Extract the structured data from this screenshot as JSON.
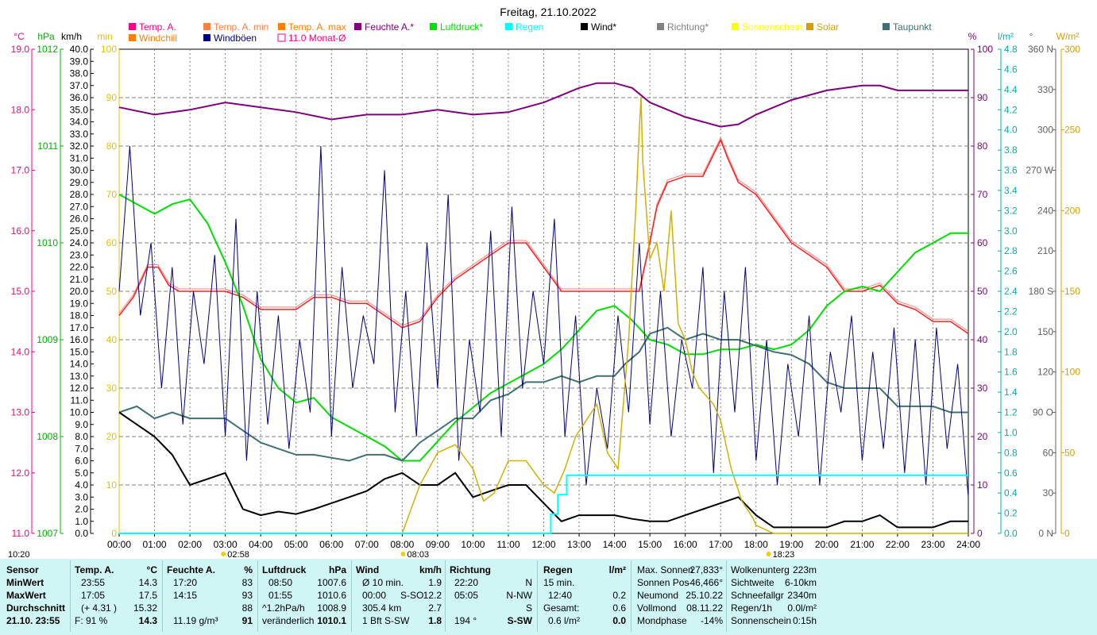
{
  "title": "Freitag, 21.10.2022",
  "colors": {
    "temp": "#ff2020",
    "temp_min": "#ff6666",
    "temp_max": "#ff8080",
    "humidity": "#800080",
    "pressure": "#00e000",
    "rain": "#00ffff",
    "wind": "#000000",
    "gusts": "#000080",
    "direction": "#808080",
    "solar": "#d4b000",
    "dewpoint": "#407070",
    "grid": "#808080",
    "footer_bg": "#cff5f5"
  },
  "legend": [
    {
      "label": "Temp. A.",
      "color": "#ff0080",
      "kind": "box"
    },
    {
      "label": "Temp. A. min",
      "color": "#ff8040",
      "kind": "box"
    },
    {
      "label": "Temp. A. max",
      "color": "#ff8000",
      "kind": "box"
    },
    {
      "label": "Feuchte A.*",
      "color": "#800080",
      "kind": "box"
    },
    {
      "label": "Luftdruck*",
      "color": "#00e000",
      "kind": "box"
    },
    {
      "label": "Regen",
      "color": "#00ffff",
      "kind": "box"
    },
    {
      "label": "Wind*",
      "color": "#000000",
      "kind": "box"
    },
    {
      "label": "Richtung*",
      "color": "#808080",
      "kind": "box"
    },
    {
      "label": "Sonnenschein",
      "color": "#ffff00",
      "kind": "box"
    },
    {
      "label": "Solar",
      "color": "#d4a000",
      "kind": "box"
    },
    {
      "label": "Taupunkt",
      "color": "#407070",
      "kind": "box"
    },
    {
      "label": "Windchill",
      "color": "#ff8000",
      "kind": "box"
    },
    {
      "label": "Windböen",
      "color": "#000080",
      "kind": "box"
    },
    {
      "label": "11.0 Monat-Ø",
      "color": "#ff0080",
      "kind": "hollow"
    }
  ],
  "axes": {
    "unit_labels": {
      "temp": "°C",
      "pressure": "hPa",
      "wind": "km/h",
      "min": "min",
      "humidity": "%",
      "rain": "l/m²",
      "direction": "°",
      "solar": "W/m²"
    },
    "temp_ticks": [
      "19.0",
      "18.0",
      "17.0",
      "16.0",
      "15.0",
      "14.0",
      "13.0",
      "12.0",
      "11.0"
    ],
    "pressure_ticks": [
      "1012",
      "1011",
      "1010",
      "1009",
      "1008",
      "1007"
    ],
    "wind_ticks": [
      "40.0",
      "39.0",
      "38.0",
      "37.0",
      "36.0",
      "35.0",
      "34.0",
      "33.0",
      "32.0",
      "31.0",
      "30.0",
      "29.0",
      "28.0",
      "27.0",
      "26.0",
      "25.0",
      "24.0",
      "23.0",
      "22.0",
      "21.0",
      "20.0",
      "19.0",
      "18.0",
      "17.0",
      "16.0",
      "15.0",
      "14.0",
      "13.0",
      "12.0",
      "11.0",
      "10.0",
      "9.0",
      "8.0",
      "7.0",
      "6.0",
      "5.0",
      "4.0",
      "3.0",
      "2.0",
      "1.0",
      "0.0"
    ],
    "min_ticks": [
      "100",
      "90",
      "80",
      "70",
      "60",
      "50",
      "40",
      "30",
      "20",
      "10",
      "0"
    ],
    "humidity_ticks": [
      "100",
      "90",
      "80",
      "70",
      "60",
      "50",
      "40",
      "30",
      "20",
      "10",
      "0"
    ],
    "rain_ticks": [
      "4.8",
      "4.6",
      "4.4",
      "4.2",
      "4.0",
      "3.8",
      "3.6",
      "3.4",
      "3.2",
      "3.0",
      "2.8",
      "2.6",
      "2.4",
      "2.2",
      "2.0",
      "1.8",
      "1.6",
      "1.4",
      "1.2",
      "1.0",
      "0.8",
      "0.6",
      "0.4",
      "0.2",
      "0.0"
    ],
    "direction_ticks": [
      "360 N",
      "330",
      "300",
      "270 W",
      "240",
      "210",
      "180 S",
      "150",
      "120",
      "90 O",
      "60",
      "30",
      "0 N"
    ],
    "solar_ticks": [
      "300",
      "250",
      "200",
      "150",
      "100",
      "50",
      "0"
    ],
    "x_ticks": [
      "00:00",
      "01:00",
      "02:00",
      "03:00",
      "04:00",
      "05:00",
      "06:00",
      "07:00",
      "08:00",
      "09:00",
      "10:00",
      "11:00",
      "12:00",
      "13:00",
      "14:00",
      "15:00",
      "16:00",
      "17:00",
      "18:00",
      "19:00",
      "20:00",
      "21:00",
      "22:00",
      "23:00",
      "24:00"
    ],
    "markers": [
      "10:20",
      "02:58",
      "08:03",
      "18:23"
    ]
  },
  "chart_data": {
    "type": "line",
    "title": "Freitag, 21.10.2022",
    "x_unit": "hours",
    "series": [
      {
        "name": "Temp. A.",
        "axis": "temp",
        "ylim": [
          11,
          19
        ],
        "x": [
          0,
          0.4,
          0.8,
          1.1,
          1.4,
          1.7,
          2,
          2.5,
          3,
          3.5,
          4,
          4.5,
          5,
          5.5,
          6,
          6.5,
          7,
          7.5,
          8,
          8.5,
          9,
          9.5,
          10,
          10.5,
          11,
          11.5,
          12,
          12.5,
          13,
          13.5,
          14,
          14.3,
          14.7,
          15,
          15.2,
          15.5,
          16,
          16.5,
          17,
          17.2,
          17.5,
          18,
          18.5,
          19,
          19.5,
          20,
          20.5,
          21,
          21.5,
          22,
          22.5,
          23,
          23.5,
          24
        ],
        "y": [
          14.6,
          14.9,
          15.4,
          15.4,
          15.1,
          15,
          15,
          15,
          15,
          14.9,
          14.7,
          14.7,
          14.7,
          14.9,
          14.9,
          14.8,
          14.8,
          14.6,
          14.4,
          14.5,
          14.9,
          15.2,
          15.4,
          15.6,
          15.8,
          15.8,
          15.4,
          15,
          15,
          15,
          15,
          15,
          15,
          15.8,
          16.4,
          16.8,
          16.9,
          16.9,
          17.5,
          17.2,
          16.8,
          16.6,
          16.2,
          15.8,
          15.6,
          15.4,
          15,
          15,
          15.1,
          14.8,
          14.7,
          14.5,
          14.5,
          14.3
        ]
      },
      {
        "name": "Feuchte A.",
        "axis": "humidity",
        "ylim": [
          0,
          100
        ],
        "x": [
          0,
          1,
          2,
          3,
          4,
          5,
          6,
          7,
          8,
          9,
          10,
          11,
          12,
          13,
          13.5,
          14,
          14.5,
          15,
          15.5,
          16,
          16.5,
          17,
          17.5,
          18,
          18.5,
          19,
          19.5,
          20,
          21,
          21.5,
          22,
          23,
          24
        ],
        "y": [
          88,
          86.5,
          87.5,
          89,
          88,
          87,
          85.5,
          86.5,
          86.5,
          87.5,
          86.5,
          87,
          89,
          92,
          93,
          93,
          92,
          89,
          87.5,
          86,
          85,
          84,
          84.5,
          86.5,
          88,
          89.5,
          90.5,
          91.5,
          92.5,
          92.5,
          91.5,
          91.5,
          91.5
        ]
      },
      {
        "name": "Luftdruck",
        "axis": "pressure",
        "ylim": [
          1007,
          1012
        ],
        "x": [
          0,
          0.5,
          1,
          1.5,
          2,
          2.5,
          3,
          3.5,
          4,
          4.5,
          5,
          5.5,
          6,
          6.5,
          7,
          7.5,
          8,
          8.5,
          9,
          9.5,
          10,
          10.5,
          11,
          11.5,
          12,
          12.5,
          13,
          13.5,
          14,
          14.5,
          15,
          15.5,
          16,
          16.5,
          17,
          17.5,
          18,
          18.5,
          19,
          19.5,
          20,
          20.5,
          21,
          21.5,
          22,
          22.5,
          23,
          23.5,
          24
        ],
        "y": [
          1010.5,
          1010.4,
          1010.3,
          1010.4,
          1010.45,
          1010.2,
          1009.8,
          1009.35,
          1008.8,
          1008.5,
          1008.35,
          1008.4,
          1008.2,
          1008.1,
          1008,
          1007.9,
          1007.75,
          1007.75,
          1007.95,
          1008.15,
          1008.3,
          1008.45,
          1008.55,
          1008.65,
          1008.75,
          1008.9,
          1009.1,
          1009.3,
          1009.35,
          1009.2,
          1009.0,
          1008.95,
          1008.85,
          1008.85,
          1008.9,
          1008.9,
          1008.95,
          1008.9,
          1008.95,
          1009.1,
          1009.35,
          1009.5,
          1009.55,
          1009.5,
          1009.7,
          1009.9,
          1010.0,
          1010.1,
          1010.1
        ]
      },
      {
        "name": "Taupunkt",
        "axis": "temp",
        "ylim": [
          11,
          19
        ],
        "x": [
          0,
          0.5,
          1,
          1.5,
          2,
          2.5,
          3,
          3.5,
          4,
          4.5,
          5,
          5.5,
          6,
          6.5,
          7,
          7.5,
          8,
          8.5,
          9,
          9.5,
          10,
          10.5,
          11,
          11.5,
          12,
          12.5,
          13,
          13.5,
          14,
          14.3,
          14.7,
          15,
          15.5,
          16,
          16.5,
          17,
          17.5,
          18,
          18.5,
          19,
          19.5,
          20,
          20.5,
          21,
          21.5,
          22,
          22.5,
          23,
          23.5,
          24
        ],
        "y": [
          13,
          13.1,
          12.9,
          13,
          12.9,
          12.9,
          12.9,
          12.7,
          12.5,
          12.4,
          12.3,
          12.3,
          12.25,
          12.2,
          12.3,
          12.3,
          12.2,
          12.5,
          12.7,
          12.9,
          12.9,
          13.2,
          13.3,
          13.5,
          13.5,
          13.6,
          13.5,
          13.6,
          13.6,
          13.8,
          14.0,
          14.3,
          14.4,
          14.2,
          14.3,
          14.2,
          14.2,
          14.1,
          14.0,
          13.95,
          13.8,
          13.5,
          13.4,
          13.4,
          13.4,
          13.1,
          13.1,
          13.1,
          13.0,
          13.0
        ]
      },
      {
        "name": "Wind",
        "axis": "wind",
        "ylim": [
          0,
          40
        ],
        "x": [
          0,
          0.5,
          1,
          1.5,
          2,
          2.5,
          3,
          3.5,
          4,
          4.5,
          5,
          5.5,
          6,
          6.5,
          7,
          7.5,
          8,
          8.5,
          9,
          9.5,
          10,
          10.5,
          11,
          11.5,
          12,
          12.5,
          13,
          13.5,
          14,
          14.5,
          15,
          15.5,
          16,
          16.5,
          17,
          17.5,
          18,
          18.5,
          19,
          19.5,
          20,
          20.5,
          21,
          21.5,
          22,
          22.5,
          23,
          23.5,
          24
        ],
        "y": [
          10,
          9,
          8,
          6.5,
          4,
          4.5,
          5,
          2,
          1.5,
          1.8,
          1.6,
          2,
          2.5,
          3,
          3.5,
          4.5,
          5,
          4,
          4,
          5,
          3,
          3.5,
          4,
          4,
          2.5,
          1,
          1.5,
          1.5,
          1.5,
          1.2,
          1,
          1,
          1.5,
          2,
          2.5,
          3,
          1.5,
          0.5,
          0.5,
          0.5,
          0.5,
          1,
          1,
          1.5,
          0.5,
          0.5,
          0.5,
          1,
          1
        ]
      },
      {
        "name": "Windböen",
        "axis": "wind",
        "ylim": [
          0,
          40
        ],
        "x": [
          0,
          0.3,
          0.6,
          0.9,
          1.2,
          1.5,
          1.8,
          2.1,
          2.4,
          2.7,
          3,
          3.3,
          3.6,
          3.9,
          4.2,
          4.5,
          4.8,
          5.1,
          5.4,
          5.7,
          6,
          6.3,
          6.6,
          6.9,
          7.2,
          7.5,
          7.8,
          8.1,
          8.4,
          8.7,
          9,
          9.3,
          9.6,
          9.9,
          10.2,
          10.5,
          10.8,
          11.1,
          11.4,
          11.7,
          12,
          12.3,
          12.6,
          12.9,
          13.2,
          13.5,
          13.8,
          14.1,
          14.4,
          14.7,
          15,
          15.3,
          15.6,
          15.9,
          16.2,
          16.5,
          16.8,
          17.1,
          17.4,
          17.7,
          18,
          18.3,
          18.6,
          18.9,
          19.2,
          19.5,
          19.8,
          20.1,
          20.4,
          20.7,
          21,
          21.3,
          21.6,
          21.9,
          22.2,
          22.5,
          22.8,
          23.1,
          23.4,
          23.7,
          24
        ],
        "y": [
          20,
          32,
          18,
          24,
          12,
          22,
          9,
          20,
          14,
          23,
          8,
          26,
          6,
          20,
          9,
          18,
          7,
          16,
          10,
          32,
          8,
          22,
          12,
          18,
          14,
          30,
          10,
          20,
          8,
          24,
          12,
          28,
          6,
          16,
          10,
          25,
          8,
          27,
          12,
          20,
          14,
          26,
          8,
          18,
          4,
          12,
          7,
          18,
          10,
          24,
          9,
          20,
          8,
          16,
          12,
          22,
          5,
          20,
          10,
          22,
          6,
          16,
          4,
          14,
          8,
          18,
          4,
          15,
          10,
          18,
          6,
          15,
          7,
          17,
          5,
          16,
          4,
          17,
          7,
          14,
          3
        ]
      },
      {
        "name": "Solar",
        "axis": "solar",
        "ylim": [
          0,
          300
        ],
        "x": [
          8,
          8.5,
          9,
          9.5,
          10,
          10.3,
          10.6,
          11,
          11.5,
          12,
          12.3,
          12.6,
          12.9,
          13.2,
          13.5,
          13.8,
          14.1,
          14.4,
          14.6,
          14.7,
          14.75,
          14.8,
          15,
          15.2,
          15.4,
          15.6,
          15.8,
          16,
          16.2,
          16.4,
          16.6,
          16.8,
          17,
          17.3,
          17.6,
          17.9,
          18,
          18.5,
          24
        ],
        "y": [
          0,
          30,
          50,
          55,
          40,
          20,
          25,
          45,
          45,
          30,
          25,
          40,
          60,
          70,
          80,
          50,
          40,
          120,
          200,
          250,
          270,
          230,
          170,
          180,
          150,
          200,
          130,
          120,
          100,
          90,
          85,
          80,
          70,
          40,
          20,
          10,
          5,
          0,
          0
        ]
      },
      {
        "name": "Regen",
        "axis": "rain",
        "ylim": [
          0,
          5
        ],
        "x": [
          0,
          12.2,
          12.2,
          12.4,
          12.4,
          12.65,
          12.65,
          24
        ],
        "y": [
          0,
          0,
          0.2,
          0.2,
          0.4,
          0.4,
          0.6,
          0.6
        ]
      }
    ]
  },
  "footer": {
    "col1": {
      "header": "Sensor",
      "rows": [
        "MinWert",
        "MaxWert",
        "Durchschnitt"
      ],
      "last": "21.10. 23:55"
    },
    "temp": {
      "header": "Temp. A.",
      "unit": "°C",
      "rows": [
        [
          "23:55",
          "14.3"
        ],
        [
          "17:05",
          "17.5"
        ],
        [
          "(+ 4.31 )",
          "15.32"
        ]
      ],
      "last_l": "F: 91 %",
      "last_v": "14.3"
    },
    "feuchte": {
      "header": "Feuchte A.",
      "unit": "%",
      "rows": [
        [
          "17:20",
          "83"
        ],
        [
          "14:15",
          "93"
        ],
        [
          "",
          "88"
        ]
      ],
      "last_l": "11.19 g/m³",
      "last_v": "91"
    },
    "druck": {
      "header": "Luftdruck",
      "unit": "hPa",
      "rows": [
        [
          "08:50",
          "1007.6"
        ],
        [
          "01:55",
          "1010.6"
        ],
        [
          "^1.2hPa/h",
          "1008.9"
        ]
      ],
      "last_l": "veränderlich",
      "last_v": "1010.1"
    },
    "wind": {
      "header": "Wind",
      "unit": "km/h",
      "rows": [
        [
          "Ø 10 min.",
          "",
          "1.9"
        ],
        [
          "00:00",
          "S-SO",
          "12.2"
        ],
        [
          "305.4 km",
          "",
          "2.7"
        ]
      ],
      "last_l": "1 Bft S-SW",
      "last_v": "1.8"
    },
    "richtung": {
      "header": "Richtung",
      "rows": [
        [
          "22:20",
          "N"
        ],
        [
          "05:05",
          "N-NW"
        ],
        [
          "",
          "S"
        ]
      ],
      "last_l": "194 °",
      "last_v": "S-SW"
    },
    "regen": {
      "header": "Regen",
      "unit": "l/m²",
      "rows": [
        [
          "15 min.",
          ""
        ],
        [
          "12:40",
          "0.2"
        ],
        [
          "Gesamt:",
          "0.6"
        ]
      ],
      "last_l": "0.6 l/m²",
      "last_v": "0.0"
    },
    "astro": {
      "rows": [
        [
          "Max. Sonnen",
          "27,833°"
        ],
        [
          "Sonnen Pos",
          "-46,466°"
        ],
        [
          "Neumond",
          "25.10.22"
        ],
        [
          "Vollmond",
          "08.11.22"
        ],
        [
          "Mondphase",
          "-14%"
        ]
      ]
    },
    "misc": {
      "rows": [
        [
          "Wolkenunterg",
          "223m"
        ],
        [
          "Sichtweite",
          "6-10km"
        ],
        [
          "Schneefallgr",
          "2340m"
        ],
        [
          "Regen/1h",
          "0.0l/m²"
        ],
        [
          "Sonnenschein",
          "0:15h"
        ]
      ]
    }
  }
}
